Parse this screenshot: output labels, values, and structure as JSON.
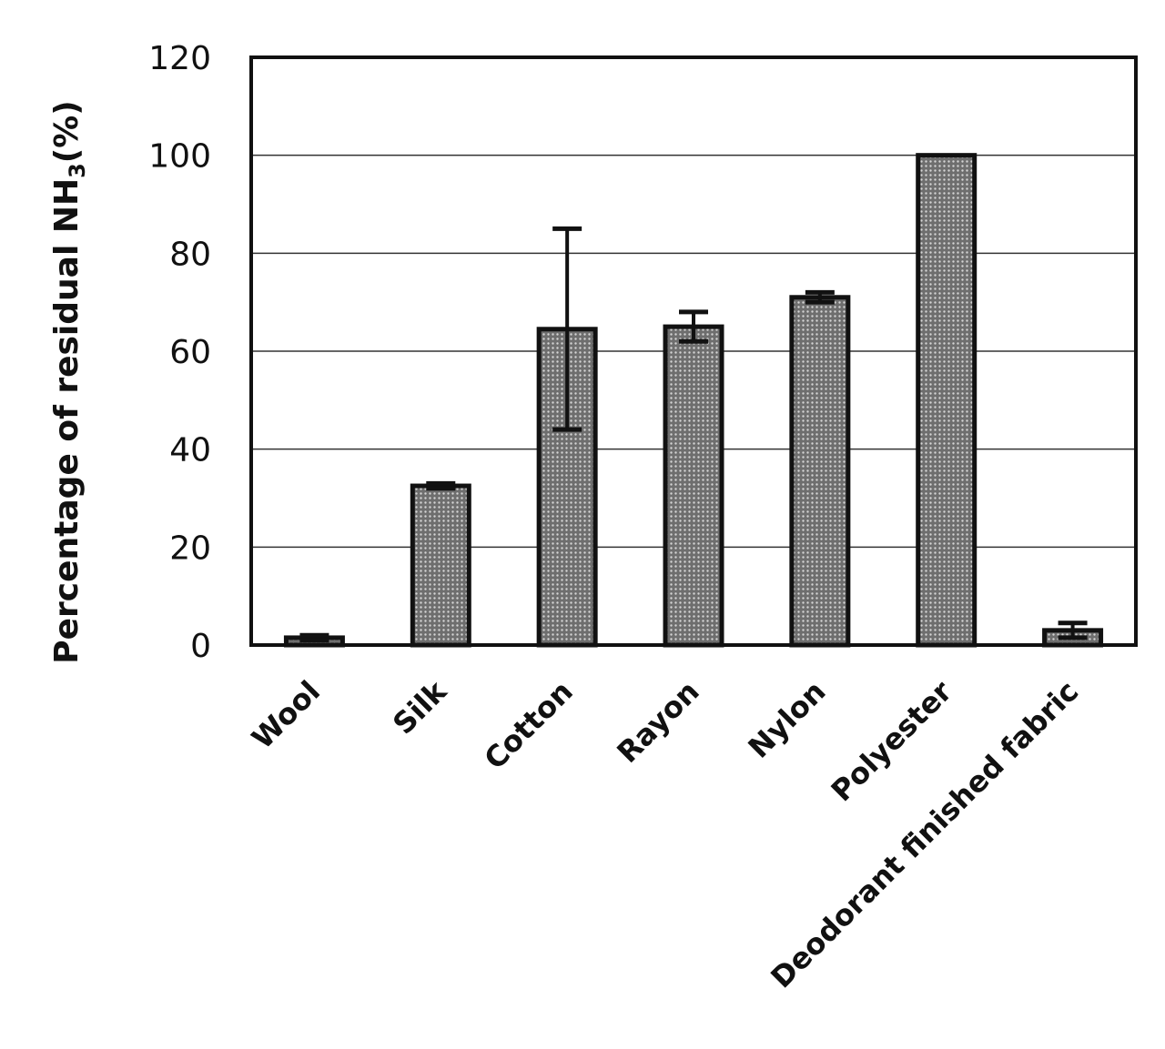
{
  "chart_data": {
    "type": "bar",
    "title": "",
    "xlabel": "",
    "ylabel": "Percentage of residual NH3(%)",
    "ylabel_parts": {
      "pre": "Percentage of residual NH",
      "sub": "3",
      "post": "(%)"
    },
    "ylim": [
      0,
      120
    ],
    "yticks": [
      "0",
      "20",
      "40",
      "60",
      "80",
      "100",
      "120"
    ],
    "grid": true,
    "legend": "none",
    "categories": [
      "Wool",
      "Silk",
      "Cotton",
      "Rayon",
      "Nylon",
      "Polyester",
      "Deodorant finished fabric"
    ],
    "values": [
      1.5,
      32.5,
      64.5,
      65,
      71,
      100,
      3
    ],
    "error": [
      0.5,
      0.5,
      20.5,
      3,
      1,
      0,
      1.5
    ],
    "colors": {
      "bar": "#9a9a9a",
      "bar_outline": "#111111",
      "grid": "#333333"
    }
  }
}
